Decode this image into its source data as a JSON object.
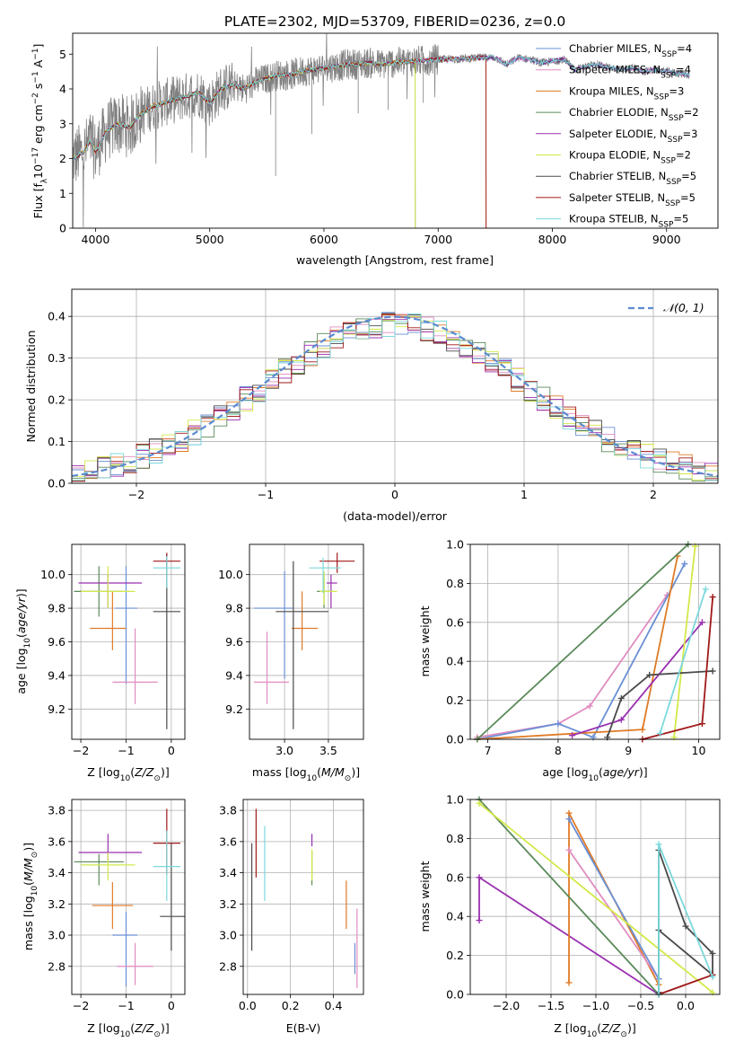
{
  "figure_title": "PLATE=2302, MJD=53709, FIBERID=0236, z=0.0",
  "chart_data": [
    {
      "id": "spectrum",
      "type": "line",
      "xlabel": "wavelength [Angstrom, rest frame]",
      "ylabel": "Flux [f_λ10^-17 erg cm^-2 s^-1 A^-1]",
      "xlim": [
        3800,
        9450
      ],
      "ylim": [
        0,
        5.6
      ],
      "xticks": [
        4000,
        5000,
        6000,
        7000,
        8000,
        9000
      ],
      "yticks": [
        0,
        1,
        2,
        3,
        4,
        5
      ],
      "legend_loc": "right",
      "data": {
        "name": "",
        "color": "#808080",
        "x": [
          3800,
          3850,
          3900,
          3950,
          4000,
          4100,
          4200,
          4300,
          4400,
          4500,
          4600,
          4700,
          4800,
          4900,
          5000,
          5100,
          5200,
          5300,
          5400,
          5500,
          5600,
          5700,
          5800,
          5900,
          6000,
          6100,
          6200,
          6300,
          6400,
          6500,
          6600,
          6700,
          6800,
          6900,
          7000,
          7100,
          7200,
          7300,
          7400,
          7500,
          7600,
          7700,
          7800,
          7900,
          8000,
          8100,
          8200,
          8300,
          8400,
          8500,
          8600,
          8700,
          8800,
          8900,
          9000,
          9100,
          9200
        ],
        "y": [
          2.0,
          2.1,
          2.2,
          2.5,
          2.2,
          2.8,
          3.0,
          2.9,
          3.3,
          3.5,
          3.6,
          3.7,
          3.8,
          3.9,
          3.6,
          4.0,
          4.1,
          4.0,
          4.2,
          4.3,
          4.4,
          4.4,
          4.5,
          4.55,
          4.6,
          4.65,
          4.7,
          4.72,
          4.75,
          4.7,
          4.75,
          4.78,
          4.8,
          4.82,
          4.85,
          4.85,
          4.87,
          4.88,
          4.9,
          4.9,
          4.7,
          4.9,
          4.85,
          4.75,
          4.8,
          4.85,
          4.55,
          4.65,
          4.7,
          4.6,
          4.55,
          4.6,
          4.5,
          4.55,
          4.5,
          4.45,
          4.4
        ]
      },
      "models": [
        {
          "name": "Chabrier MILES",
          "nssp": "4",
          "color": "#6a8fd4"
        },
        {
          "name": "Salpeter MILES",
          "nssp": "4",
          "color": "#e08cc0"
        },
        {
          "name": "Kroupa MILES",
          "nssp": "3",
          "color": "#e07b26"
        },
        {
          "name": "Chabrier ELODIE",
          "nssp": "2",
          "color": "#5a8a5a"
        },
        {
          "name": "Salpeter ELODIE",
          "nssp": "3",
          "color": "#9a2fb0"
        },
        {
          "name": "Kroupa ELODIE",
          "nssp": "2",
          "color": "#d4e84a"
        },
        {
          "name": "Chabrier STELIB",
          "nssp": "5",
          "color": "#4a4a4a"
        },
        {
          "name": "Salpeter STELIB",
          "nssp": "5",
          "color": "#a01818"
        },
        {
          "name": "Kroupa STELIB",
          "nssp": "5",
          "color": "#7cd8dc"
        }
      ],
      "model_end": [
        9200,
        9200,
        7420,
        6800,
        9200,
        6800,
        9200,
        7420,
        9200
      ]
    },
    {
      "id": "residuals",
      "type": "bar",
      "xlabel": "(data-model)/error",
      "ylabel": "Normed distribution",
      "xlim": [
        -2.5,
        2.5
      ],
      "ylim": [
        0,
        0.465
      ],
      "xticks": [
        -2,
        -1,
        0,
        1,
        2
      ],
      "yticks": [
        0.0,
        0.1,
        0.2,
        0.3,
        0.4
      ],
      "bin_width": 0.1,
      "legend": "𝒩(0, 1)",
      "legend_loc": "top-right",
      "curve_color": "#5b8bd0",
      "histogram_note": "step histograms, one per model, colors as in spectrum legend"
    },
    {
      "id": "age_vs_Z",
      "type": "scatter",
      "xlabel": "Z [log10(Z/Z⊙)]",
      "ylabel": "age [log10(age/yr)]",
      "xlim": [
        -2.2,
        0.3
      ],
      "ylim": [
        9.02,
        10.18
      ],
      "xticks": [
        -2,
        -1,
        0
      ],
      "yticks": [
        9.2,
        9.4,
        9.6,
        9.8,
        10.0
      ],
      "points": [
        {
          "x": -1.0,
          "y": 9.8,
          "xerr": [
            0.25,
            0.25
          ],
          "yerr": [
            0.45,
            0.25
          ],
          "color": "#6a8fd4"
        },
        {
          "x": -0.8,
          "y": 9.36,
          "xerr": [
            0.5,
            0.5
          ],
          "yerr": [
            0.13,
            0.32
          ],
          "color": "#e08cc0"
        },
        {
          "x": -1.3,
          "y": 9.68,
          "xerr": [
            0.5,
            0.3
          ],
          "yerr": [
            0.13,
            0.22
          ],
          "color": "#e07b26"
        },
        {
          "x": -1.6,
          "y": 9.9,
          "xerr": [
            0.55,
            0.55
          ],
          "yerr": [
            0.15,
            0.15
          ],
          "color": "#5a8a5a"
        },
        {
          "x": -1.4,
          "y": 9.95,
          "xerr": [
            0.65,
            0.75
          ],
          "yerr": [
            0.15,
            0.05
          ],
          "color": "#9a2fb0"
        },
        {
          "x": -1.4,
          "y": 9.9,
          "xerr": [
            0.6,
            0.6
          ],
          "yerr": [
            0.1,
            0.15
          ],
          "color": "#d4e84a"
        },
        {
          "x": -0.1,
          "y": 9.78,
          "xerr": [
            0.3,
            0.3
          ],
          "yerr": [
            0.7,
            0.34
          ],
          "color": "#4a4a4a"
        },
        {
          "x": -0.1,
          "y": 10.08,
          "xerr": [
            0.3,
            0.3
          ],
          "yerr": [
            0.05,
            0.05
          ],
          "color": "#a01818"
        },
        {
          "x": -0.1,
          "y": 10.04,
          "xerr": [
            0.3,
            0.3
          ],
          "yerr": [
            0.12,
            0.07
          ],
          "color": "#7cd8dc"
        }
      ]
    },
    {
      "id": "age_vs_mass",
      "type": "scatter",
      "xlabel": "mass [log10(M/M⊙)]",
      "ylabel": "",
      "xlim": [
        2.6,
        3.9
      ],
      "ylim": [
        9.02,
        10.18
      ],
      "xticks": [
        3.0,
        3.5
      ],
      "yticks": [
        9.2,
        9.4,
        9.6,
        9.8,
        10.0
      ],
      "points": [
        {
          "x": 3.0,
          "y": 9.8,
          "xerr": [
            0.35,
            0.1
          ],
          "yerr": [
            0.42,
            0.22
          ],
          "color": "#6a8fd4"
        },
        {
          "x": 2.8,
          "y": 9.36,
          "xerr": [
            0.15,
            0.25
          ],
          "yerr": [
            0.13,
            0.3
          ],
          "color": "#e08cc0"
        },
        {
          "x": 3.2,
          "y": 9.68,
          "xerr": [
            0.12,
            0.18
          ],
          "yerr": [
            0.13,
            0.22
          ],
          "color": "#e07b26"
        },
        {
          "x": 3.45,
          "y": 9.9,
          "xerr": [
            0.08,
            0.1
          ],
          "yerr": [
            0.1,
            0.1
          ],
          "color": "#5a8a5a"
        },
        {
          "x": 3.53,
          "y": 9.95,
          "xerr": [
            0.05,
            0.07
          ],
          "yerr": [
            0.15,
            0.05
          ],
          "color": "#9a2fb0"
        },
        {
          "x": 3.45,
          "y": 9.9,
          "xerr": [
            0.05,
            0.15
          ],
          "yerr": [
            0.08,
            0.12
          ],
          "color": "#d4e84a"
        },
        {
          "x": 3.1,
          "y": 9.78,
          "xerr": [
            0.2,
            0.4
          ],
          "yerr": [
            0.7,
            0.3
          ],
          "color": "#4a4a4a"
        },
        {
          "x": 3.6,
          "y": 10.08,
          "xerr": [
            0.2,
            0.2
          ],
          "yerr": [
            0.07,
            0.05
          ],
          "color": "#a01818"
        },
        {
          "x": 3.44,
          "y": 10.04,
          "xerr": [
            0.16,
            0.2
          ],
          "yerr": [
            0.15,
            0.06
          ],
          "color": "#7cd8dc"
        }
      ]
    },
    {
      "id": "mw_vs_age",
      "type": "line",
      "xlabel": "age [log10(age/yr)]",
      "ylabel": "mass weight",
      "xlim": [
        6.75,
        10.3
      ],
      "ylim": [
        0,
        1.0
      ],
      "xticks": [
        7,
        8,
        9,
        10
      ],
      "yticks": [
        0.0,
        0.2,
        0.4,
        0.6,
        0.8,
        1.0
      ],
      "series": [
        {
          "color": "#e08cc0",
          "x": [
            6.85,
            8.0,
            8.45,
            9.55
          ],
          "y": [
            0.01,
            0.08,
            0.17,
            0.74
          ]
        },
        {
          "color": "#6a8fd4",
          "x": [
            6.85,
            8.0,
            8.5,
            9.8
          ],
          "y": [
            0.0,
            0.08,
            0.01,
            0.9
          ]
        },
        {
          "color": "#e07b26",
          "x": [
            6.85,
            9.2,
            9.7
          ],
          "y": [
            0.0,
            0.05,
            0.94
          ]
        },
        {
          "color": "#5a8a5a",
          "x": [
            6.85,
            9.85
          ],
          "y": [
            0.0,
            1.0
          ]
        },
        {
          "color": "#9a2fb0",
          "x": [
            8.2,
            8.9,
            10.05
          ],
          "y": [
            0.02,
            0.1,
            0.6
          ]
        },
        {
          "color": "#d4e84a",
          "x": [
            9.65,
            9.95
          ],
          "y": [
            0.01,
            0.99
          ]
        },
        {
          "color": "#4a4a4a",
          "x": [
            8.7,
            8.9,
            9.3,
            10.2
          ],
          "y": [
            0.01,
            0.21,
            0.33,
            0.35
          ]
        },
        {
          "color": "#a01818",
          "x": [
            9.2,
            10.05,
            10.2
          ],
          "y": [
            0.0,
            0.08,
            0.73
          ]
        },
        {
          "color": "#7cd8dc",
          "x": [
            9.45,
            10.1
          ],
          "y": [
            0.03,
            0.77
          ]
        }
      ]
    },
    {
      "id": "mass_vs_Z",
      "type": "scatter",
      "xlabel": "Z [log10(Z/Z⊙)]",
      "ylabel": "mass [log10(M/M⊙)]",
      "xlim": [
        -2.2,
        0.3
      ],
      "ylim": [
        2.62,
        3.87
      ],
      "xticks": [
        -2,
        -1,
        0
      ],
      "yticks": [
        2.8,
        3.0,
        3.2,
        3.4,
        3.6,
        3.8
      ],
      "points": [
        {
          "x": -1.0,
          "y": 3.0,
          "xerr": [
            0.3,
            0.25
          ],
          "yerr": [
            0.33,
            0.15
          ],
          "color": "#6a8fd4"
        },
        {
          "x": -0.8,
          "y": 2.8,
          "xerr": [
            0.4,
            0.4
          ],
          "yerr": [
            0.12,
            0.15
          ],
          "color": "#e08cc0"
        },
        {
          "x": -1.3,
          "y": 3.19,
          "xerr": [
            0.45,
            0.45
          ],
          "yerr": [
            0.15,
            0.15
          ],
          "color": "#e07b26"
        },
        {
          "x": -1.6,
          "y": 3.47,
          "xerr": [
            0.55,
            0.55
          ],
          "yerr": [
            0.15,
            0.05
          ],
          "color": "#5a8a5a"
        },
        {
          "x": -1.4,
          "y": 3.53,
          "xerr": [
            0.65,
            0.75
          ],
          "yerr": [
            0.05,
            0.12
          ],
          "color": "#9a2fb0"
        },
        {
          "x": -1.4,
          "y": 3.45,
          "xerr": [
            0.6,
            0.6
          ],
          "yerr": [
            0.1,
            0.08
          ],
          "color": "#d4e84a"
        },
        {
          "x": 0.0,
          "y": 3.12,
          "xerr": [
            0.25,
            0.3
          ],
          "yerr": [
            0.22,
            0.47
          ],
          "color": "#4a4a4a"
        },
        {
          "x": -0.1,
          "y": 3.59,
          "xerr": [
            0.3,
            0.3
          ],
          "yerr": [
            0.2,
            0.22
          ],
          "color": "#a01818"
        },
        {
          "x": -0.1,
          "y": 3.44,
          "xerr": [
            0.3,
            0.3
          ],
          "yerr": [
            0.22,
            0.23
          ],
          "color": "#7cd8dc"
        }
      ]
    },
    {
      "id": "mass_vs_EBV",
      "type": "scatter",
      "xlabel": "E(B-V)",
      "ylabel": "",
      "xlim": [
        -0.02,
        0.54
      ],
      "ylim": [
        2.62,
        3.87
      ],
      "xticks": [
        0.0,
        0.2,
        0.4
      ],
      "yticks": [
        2.8,
        3.0,
        3.2,
        3.4,
        3.6,
        3.8
      ],
      "points": [
        {
          "x": 0.51,
          "y": 2.92,
          "xerr": [
            0,
            0
          ],
          "yerr": [
            0.26,
            0.25
          ],
          "color": "#e08cc0"
        },
        {
          "x": 0.5,
          "y": 2.85,
          "xerr": [
            0,
            0
          ],
          "yerr": [
            0.1,
            0.1
          ],
          "color": "#6a8fd4"
        },
        {
          "x": 0.46,
          "y": 3.19,
          "xerr": [
            0,
            0
          ],
          "yerr": [
            0.15,
            0.16
          ],
          "color": "#e07b26"
        },
        {
          "x": 0.3,
          "y": 3.42,
          "xerr": [
            0,
            0
          ],
          "yerr": [
            0.1,
            0.12
          ],
          "color": "#5a8a5a"
        },
        {
          "x": 0.3,
          "y": 3.6,
          "xerr": [
            0,
            0
          ],
          "yerr": [
            0.03,
            0.05
          ],
          "color": "#9a2fb0"
        },
        {
          "x": 0.3,
          "y": 3.45,
          "xerr": [
            0,
            0
          ],
          "yerr": [
            0.1,
            0.1
          ],
          "color": "#d4e84a"
        },
        {
          "x": 0.02,
          "y": 3.12,
          "xerr": [
            0,
            0
          ],
          "yerr": [
            0.22,
            0.47
          ],
          "color": "#4a4a4a"
        },
        {
          "x": 0.04,
          "y": 3.59,
          "xerr": [
            0,
            0
          ],
          "yerr": [
            0.22,
            0.22
          ],
          "color": "#a01818"
        },
        {
          "x": 0.08,
          "y": 3.46,
          "xerr": [
            0,
            0
          ],
          "yerr": [
            0.24,
            0.24
          ],
          "color": "#7cd8dc"
        }
      ]
    },
    {
      "id": "mw_vs_Z",
      "type": "line",
      "xlabel": "Z [log10(Z/Z⊙)]",
      "ylabel": "mass weight",
      "xlim": [
        -2.4,
        0.38
      ],
      "ylim": [
        0,
        1.0
      ],
      "xticks": [
        -2.0,
        -1.5,
        -1.0,
        -0.5,
        0.0
      ],
      "yticks": [
        0.0,
        0.2,
        0.4,
        0.6,
        0.8,
        1.0
      ],
      "series": [
        {
          "color": "#9a2fb0",
          "x": [
            -2.3,
            -2.3,
            -0.3
          ],
          "y": [
            0.38,
            0.6,
            0.0
          ]
        },
        {
          "color": "#e07b26",
          "x": [
            -1.3,
            -1.3,
            -0.3
          ],
          "y": [
            0.06,
            0.93,
            0.05
          ]
        },
        {
          "color": "#e08cc0",
          "x": [
            -1.3,
            -0.3
          ],
          "y": [
            0.74,
            0.08
          ]
        },
        {
          "color": "#6a8fd4",
          "x": [
            -1.3,
            -0.3,
            -0.3
          ],
          "y": [
            0.9,
            0.08,
            0.0
          ]
        },
        {
          "color": "#5a8a5a",
          "x": [
            -2.3,
            -0.3
          ],
          "y": [
            1.0,
            0.0
          ]
        },
        {
          "color": "#d4e84a",
          "x": [
            -2.3,
            0.3
          ],
          "y": [
            0.98,
            0.01
          ]
        },
        {
          "color": "#4a4a4a",
          "x": [
            -0.3,
            -0.3,
            0.0,
            0.3,
            0.3,
            -0.3
          ],
          "y": [
            0.01,
            0.74,
            0.35,
            0.21,
            0.1,
            0.33
          ]
        },
        {
          "color": "#a01818",
          "x": [
            -0.3,
            0.3
          ],
          "y": [
            0.0,
            0.1
          ]
        },
        {
          "color": "#7cd8dc",
          "x": [
            -0.3,
            -0.3,
            0.3
          ],
          "y": [
            0.0,
            0.77,
            0.09
          ]
        }
      ]
    }
  ]
}
